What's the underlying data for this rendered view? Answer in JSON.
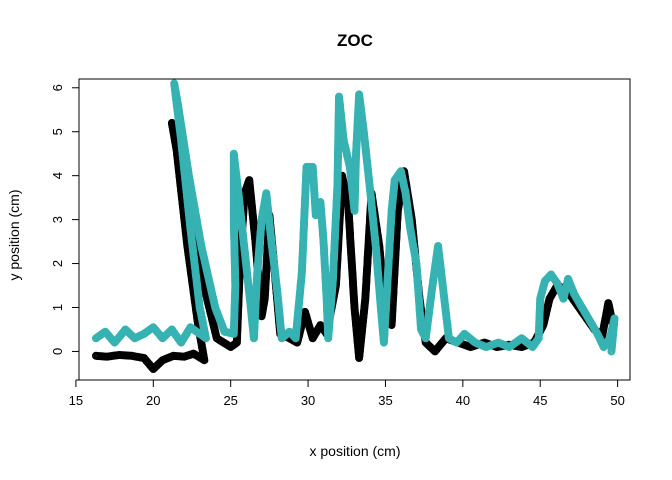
{
  "chart_data": {
    "type": "scatter",
    "title": "ZOC",
    "xlabel": "x position (cm)",
    "ylabel": "y position (cm)",
    "xlim": [
      15.2,
      50.8
    ],
    "ylim": [
      -0.65,
      6.2
    ],
    "xticks": [
      "15",
      "20",
      "25",
      "30",
      "35",
      "40",
      "45",
      "50"
    ],
    "xtick_values": [
      15,
      20,
      25,
      30,
      35,
      40,
      45,
      50
    ],
    "yticks": [
      "0",
      "1",
      "2",
      "3",
      "4",
      "5",
      "6"
    ],
    "ytick_values": [
      0,
      1,
      2,
      3,
      4,
      5,
      6
    ],
    "grid": false,
    "marker": "open-circle",
    "series": [
      {
        "color": "#000000",
        "path": [
          [
            16.3,
            -0.1
          ],
          [
            17.0,
            -0.12
          ],
          [
            17.8,
            -0.08
          ],
          [
            18.6,
            -0.1
          ],
          [
            19.4,
            -0.15
          ],
          [
            20.0,
            -0.4
          ],
          [
            20.6,
            -0.2
          ],
          [
            21.3,
            -0.1
          ],
          [
            22.0,
            -0.12
          ],
          [
            22.6,
            -0.05
          ],
          [
            23.3,
            -0.2
          ],
          [
            22.9,
            0.6
          ],
          [
            22.2,
            2.4
          ],
          [
            21.5,
            4.6
          ],
          [
            21.2,
            5.2
          ],
          [
            21.7,
            4.9
          ],
          [
            22.4,
            3.2
          ],
          [
            23.2,
            1.6
          ],
          [
            24.1,
            0.3
          ],
          [
            25.0,
            0.1
          ],
          [
            25.4,
            0.2
          ],
          [
            25.6,
            2.0
          ],
          [
            25.9,
            3.6
          ],
          [
            26.2,
            3.9
          ],
          [
            26.6,
            2.5
          ],
          [
            27.0,
            0.8
          ],
          [
            27.2,
            1.2
          ],
          [
            27.5,
            3.1
          ],
          [
            27.8,
            2.0
          ],
          [
            28.2,
            0.4
          ],
          [
            28.8,
            0.3
          ],
          [
            29.3,
            0.2
          ],
          [
            29.8,
            0.9
          ],
          [
            30.3,
            0.3
          ],
          [
            30.8,
            0.6
          ],
          [
            31.2,
            0.4
          ],
          [
            31.8,
            1.5
          ],
          [
            32.2,
            4.0
          ],
          [
            32.6,
            3.3
          ],
          [
            33.0,
            1.0
          ],
          [
            33.3,
            -0.15
          ],
          [
            33.7,
            1.2
          ],
          [
            34.1,
            3.6
          ],
          [
            34.6,
            2.4
          ],
          [
            35.0,
            0.9
          ],
          [
            35.4,
            0.6
          ],
          [
            35.8,
            3.2
          ],
          [
            36.2,
            4.1
          ],
          [
            36.7,
            3.0
          ],
          [
            37.2,
            1.2
          ],
          [
            37.6,
            0.2
          ],
          [
            38.2,
            0.0
          ],
          [
            38.9,
            0.3
          ],
          [
            39.7,
            0.2
          ],
          [
            40.5,
            0.1
          ],
          [
            41.4,
            0.2
          ],
          [
            42.2,
            0.1
          ],
          [
            43.0,
            0.15
          ],
          [
            43.8,
            0.1
          ],
          [
            44.6,
            0.2
          ],
          [
            45.2,
            0.6
          ],
          [
            45.6,
            1.2
          ],
          [
            46.1,
            1.5
          ],
          [
            46.7,
            1.4
          ],
          [
            47.3,
            1.1
          ],
          [
            47.9,
            0.8
          ],
          [
            48.5,
            0.5
          ],
          [
            49.0,
            0.35
          ],
          [
            49.4,
            1.1
          ],
          [
            49.7,
            0.6
          ]
        ]
      },
      {
        "color": "#37b2b2",
        "path": [
          [
            16.3,
            0.3
          ],
          [
            16.9,
            0.45
          ],
          [
            17.5,
            0.2
          ],
          [
            18.2,
            0.5
          ],
          [
            18.8,
            0.3
          ],
          [
            19.4,
            0.4
          ],
          [
            20.0,
            0.55
          ],
          [
            20.6,
            0.3
          ],
          [
            21.2,
            0.5
          ],
          [
            21.8,
            0.2
          ],
          [
            22.4,
            0.55
          ],
          [
            23.0,
            0.4
          ],
          [
            23.4,
            0.3
          ],
          [
            23.0,
            1.0
          ],
          [
            22.4,
            2.8
          ],
          [
            21.8,
            4.8
          ],
          [
            21.35,
            6.1
          ],
          [
            21.6,
            5.6
          ],
          [
            22.3,
            4.0
          ],
          [
            23.1,
            2.4
          ],
          [
            24.0,
            1.0
          ],
          [
            24.6,
            0.45
          ],
          [
            25.2,
            0.4
          ],
          [
            25.3,
            1.5
          ],
          [
            25.2,
            3.0
          ],
          [
            25.2,
            4.5
          ],
          [
            25.5,
            3.6
          ],
          [
            25.9,
            2.3
          ],
          [
            26.3,
            1.0
          ],
          [
            26.5,
            0.3
          ],
          [
            26.7,
            1.7
          ],
          [
            27.0,
            3.0
          ],
          [
            27.3,
            3.6
          ],
          [
            27.6,
            2.6
          ],
          [
            28.0,
            1.4
          ],
          [
            28.3,
            0.3
          ],
          [
            28.8,
            0.45
          ],
          [
            29.2,
            0.3
          ],
          [
            29.6,
            1.8
          ],
          [
            29.9,
            4.2
          ],
          [
            30.3,
            4.2
          ],
          [
            30.5,
            3.1
          ],
          [
            30.8,
            3.4
          ],
          [
            31.0,
            2.5
          ],
          [
            31.2,
            1.2
          ],
          [
            31.3,
            0.3
          ],
          [
            31.6,
            1.6
          ],
          [
            31.9,
            3.8
          ],
          [
            32.0,
            5.8
          ],
          [
            32.3,
            4.8
          ],
          [
            32.7,
            4.2
          ],
          [
            33.0,
            3.2
          ],
          [
            33.1,
            4.5
          ],
          [
            33.3,
            5.85
          ],
          [
            33.6,
            5.0
          ],
          [
            34.0,
            3.7
          ],
          [
            34.4,
            2.3
          ],
          [
            34.7,
            1.0
          ],
          [
            34.9,
            0.2
          ],
          [
            35.2,
            2.0
          ],
          [
            35.4,
            3.2
          ],
          [
            35.6,
            3.9
          ],
          [
            36.0,
            4.1
          ],
          [
            36.3,
            3.6
          ],
          [
            36.6,
            2.8
          ],
          [
            37.0,
            2.0
          ],
          [
            37.3,
            0.5
          ],
          [
            37.6,
            0.3
          ],
          [
            38.0,
            1.4
          ],
          [
            38.4,
            2.4
          ],
          [
            38.7,
            1.5
          ],
          [
            39.1,
            0.3
          ],
          [
            39.6,
            0.2
          ],
          [
            40.1,
            0.4
          ],
          [
            40.8,
            0.2
          ],
          [
            41.5,
            0.1
          ],
          [
            42.3,
            0.2
          ],
          [
            43.0,
            0.1
          ],
          [
            43.8,
            0.3
          ],
          [
            44.5,
            0.1
          ],
          [
            44.9,
            0.3
          ],
          [
            45.0,
            1.2
          ],
          [
            45.3,
            1.6
          ],
          [
            45.7,
            1.75
          ],
          [
            46.1,
            1.55
          ],
          [
            46.5,
            1.2
          ],
          [
            46.8,
            1.65
          ],
          [
            47.2,
            1.3
          ],
          [
            47.7,
            1.0
          ],
          [
            48.2,
            0.7
          ],
          [
            48.7,
            0.4
          ],
          [
            49.1,
            0.1
          ],
          [
            49.5,
            0.3
          ],
          [
            49.8,
            0.75
          ],
          [
            49.6,
            0.0
          ]
        ]
      }
    ]
  }
}
